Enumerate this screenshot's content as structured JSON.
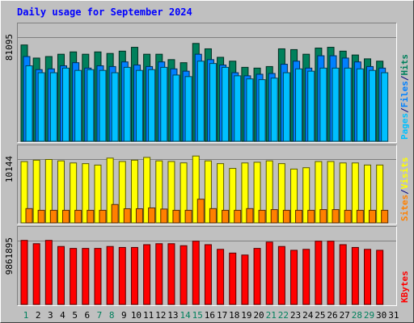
{
  "title": "Daily usage for September 2024",
  "colors": {
    "title": "#0000ff",
    "frame": "#c0c0c0",
    "hits": "#00805c",
    "files": "#0080ff",
    "pages": "#00c0ff",
    "visits": "#ffff00",
    "sites": "#ff8000",
    "kbytes": "#ff0000",
    "weekend_day": "#00805c",
    "weekday": "#000000"
  },
  "chart_data": {
    "type": "bar",
    "days": [
      "1",
      "2",
      "3",
      "4",
      "5",
      "6",
      "7",
      "8",
      "9",
      "10",
      "11",
      "12",
      "13",
      "14",
      "15",
      "16",
      "17",
      "18",
      "19",
      "20",
      "21",
      "22",
      "23",
      "24",
      "25",
      "26",
      "27",
      "28",
      "29",
      "30",
      "31"
    ],
    "weekend_days": [
      1,
      7,
      8,
      14,
      15,
      21,
      22,
      28,
      29
    ],
    "panels": [
      {
        "name": "hits-files-pages",
        "max_label": "81095",
        "ymax": 81095,
        "legend": [
          {
            "text": "Hits",
            "color_key": "hits"
          },
          {
            "text": "Files",
            "color_key": "files"
          },
          {
            "text": "Pages",
            "color_key": "pages"
          }
        ],
        "series": [
          {
            "name": "Hits",
            "color_key": "hits",
            "offset": 0,
            "values": [
              75000,
              64800,
              66000,
              67800,
              69600,
              67800,
              69600,
              68400,
              70200,
              73200,
              67800,
              67800,
              63600,
              61200,
              76200,
              72000,
              65400,
              62400,
              57600,
              57000,
              58200,
              72000,
              71400,
              67800,
              72600,
              73200,
              70200,
              67200,
              64200,
              62400,
              null
            ]
          },
          {
            "name": "Files",
            "color_key": "files",
            "offset": 1,
            "values": [
              66000,
              55800,
              56400,
              58800,
              61200,
              57000,
              58800,
              58200,
              61800,
              59400,
              58200,
              61800,
              56400,
              54600,
              67800,
              63600,
              59400,
              53400,
              51000,
              52200,
              52800,
              60000,
              62400,
              57000,
              66600,
              66600,
              64800,
              61800,
              58200,
              57000,
              null
            ]
          },
          {
            "name": "Pages",
            "color_key": "pages",
            "offset": 2,
            "values": [
              58800,
              53400,
              53400,
              57000,
              55200,
              55800,
              55200,
              53400,
              57600,
              55200,
              55800,
              57600,
              51600,
              50400,
              62400,
              60600,
              57600,
              51000,
              48600,
              48000,
              49200,
              53400,
              56400,
              54600,
              57000,
              57000,
              57000,
              56400,
              55200,
              53400,
              null
            ]
          }
        ]
      },
      {
        "name": "visits-sites",
        "max_label": "10144",
        "ymax": 10144,
        "legend": [
          {
            "text": "Visits",
            "color_key": "visits"
          },
          {
            "text": "Sites",
            "color_key": "sites"
          }
        ],
        "series": [
          {
            "name": "Visits",
            "color_key": "visits",
            "offset": 0,
            "values": [
              9740,
              9970,
              10080,
              9860,
              9530,
              9420,
              9190,
              10300,
              9760,
              9970,
              10410,
              9860,
              9760,
              9540,
              10630,
              9860,
              9420,
              8660,
              9530,
              9640,
              9860,
              9420,
              8560,
              8770,
              9750,
              9760,
              9530,
              9530,
              9200,
              9200,
              null
            ]
          },
          {
            "name": "Sites",
            "color_key": "sites",
            "offset": 2,
            "values": [
              2270,
              2000,
              2000,
              2000,
              2000,
              2000,
              2000,
              2920,
              2250,
              2250,
              2380,
              2200,
              2000,
              2000,
              3770,
              2270,
              2000,
              2000,
              2270,
              2000,
              2110,
              2000,
              2000,
              2000,
              2110,
              2110,
              2000,
              2000,
              2000,
              2000,
              null
            ]
          }
        ]
      },
      {
        "name": "kbytes",
        "max_label": "9861895",
        "ymax": 9861895,
        "legend": [
          {
            "text": "KBytes",
            "color_key": "kbytes"
          }
        ],
        "series": [
          {
            "name": "KBytes",
            "color_key": "kbytes",
            "offset": 0,
            "values": [
              9900000,
              9390000,
              9900000,
              8960000,
              8660000,
              8660000,
              8660000,
              8960000,
              8810000,
              8810000,
              9240000,
              9390000,
              9390000,
              9080000,
              9780000,
              9240000,
              8520000,
              7940000,
              7640000,
              8660000,
              9640000,
              8960000,
              8370000,
              8520000,
              9780000,
              9780000,
              9240000,
              8810000,
              8520000,
              8370000,
              null
            ]
          }
        ]
      }
    ]
  }
}
